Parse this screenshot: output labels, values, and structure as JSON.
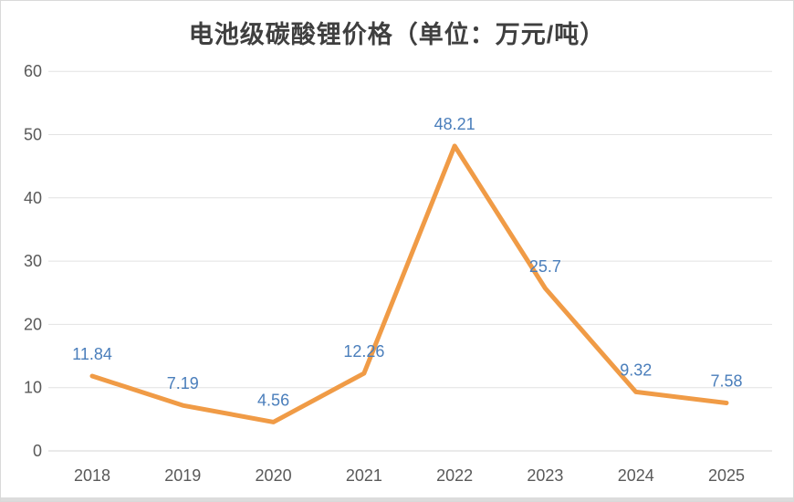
{
  "title": "电池级碳酸锂价格（单位：万元/吨）",
  "chart_data": {
    "type": "line",
    "title": "电池级碳酸锂价格（单位：万元/吨）",
    "categories": [
      "2018",
      "2019",
      "2020",
      "2021",
      "2022",
      "2023",
      "2024",
      "2025"
    ],
    "values": [
      11.84,
      7.19,
      4.56,
      12.26,
      48.21,
      25.7,
      9.32,
      7.58
    ],
    "data_labels": [
      "11.84",
      "7.19",
      "4.56",
      "12.26",
      "48.21",
      "25.7",
      "9.32",
      "7.58"
    ],
    "xlabel": "",
    "ylabel": "",
    "ylim": [
      0,
      60
    ],
    "y_ticks": [
      "0",
      "10",
      "20",
      "30",
      "40",
      "50",
      "60"
    ],
    "grid": true,
    "legend_position": "none",
    "colors": {
      "line": "#F09B46",
      "data_label": "#4A7EBB",
      "gridline": "#E2E2E2",
      "axis_line": "#D6D6D6",
      "tick_label": "#595959",
      "title": "#3F3F3F"
    }
  }
}
